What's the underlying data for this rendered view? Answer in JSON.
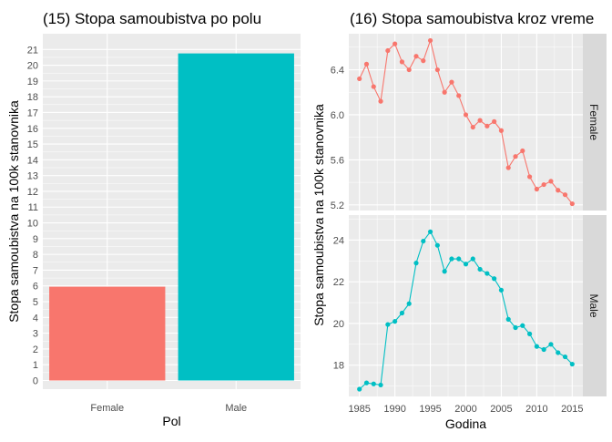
{
  "chart_data": [
    {
      "type": "bar",
      "title": "(15) Stopa samoubistva po polu",
      "xlabel": "Pol",
      "ylabel": "Stopa samoubistva na 100k stanovnika",
      "categories": [
        "Female",
        "Male"
      ],
      "values": [
        5.95,
        20.75
      ],
      "colors": [
        "#F8766D",
        "#00BFC4"
      ],
      "ylim": [
        -0.55,
        22.0
      ],
      "yticks": [
        0,
        1,
        2,
        3,
        4,
        5,
        6,
        7,
        8,
        9,
        10,
        11,
        12,
        13,
        14,
        15,
        16,
        17,
        18,
        19,
        20,
        21
      ],
      "grid": true,
      "legend": "none"
    },
    {
      "type": "line",
      "title": "(16) Stopa samoubistva kroz vreme",
      "xlabel": "Godina",
      "ylabel": "Stopa samoubistva na 100k stanovnika",
      "xlim": [
        1983.5,
        2016.5
      ],
      "xticks": [
        1985,
        1990,
        1995,
        2000,
        2005,
        2010,
        2015
      ],
      "grid": true,
      "legend": "none",
      "facets": "rows",
      "series": [
        {
          "name": "Female",
          "color": "#F8766D",
          "ylim": [
            5.15,
            6.72
          ],
          "yticks": [
            5.2,
            5.6,
            6.0,
            6.4
          ],
          "x": [
            1985,
            1986,
            1987,
            1988,
            1989,
            1990,
            1991,
            1992,
            1993,
            1994,
            1995,
            1996,
            1997,
            1998,
            1999,
            2000,
            2001,
            2002,
            2003,
            2004,
            2005,
            2006,
            2007,
            2008,
            2009,
            2010,
            2011,
            2012,
            2013,
            2014,
            2015
          ],
          "values": [
            6.32,
            6.45,
            6.25,
            6.12,
            6.57,
            6.63,
            6.47,
            6.4,
            6.52,
            6.48,
            6.66,
            6.4,
            6.2,
            6.29,
            6.17,
            6.0,
            5.89,
            5.95,
            5.9,
            5.94,
            5.86,
            5.53,
            5.63,
            5.68,
            5.45,
            5.34,
            5.38,
            5.41,
            5.33,
            5.29,
            5.21
          ]
        },
        {
          "name": "Male",
          "color": "#00BFC4",
          "ylim": [
            16.5,
            25.2
          ],
          "yticks": [
            18,
            20,
            22,
            24
          ],
          "x": [
            1985,
            1986,
            1987,
            1988,
            1989,
            1990,
            1991,
            1992,
            1993,
            1994,
            1995,
            1996,
            1997,
            1998,
            1999,
            2000,
            2001,
            2002,
            2003,
            2004,
            2005,
            2006,
            2007,
            2008,
            2009,
            2010,
            2011,
            2012,
            2013,
            2014,
            2015
          ],
          "values": [
            16.85,
            17.15,
            17.1,
            17.05,
            19.95,
            20.1,
            20.5,
            20.95,
            22.9,
            23.95,
            24.4,
            23.75,
            22.5,
            23.1,
            23.1,
            22.85,
            23.1,
            22.6,
            22.4,
            22.15,
            21.6,
            20.2,
            19.8,
            19.9,
            19.5,
            18.9,
            18.75,
            19.0,
            18.6,
            18.4,
            18.05
          ]
        }
      ]
    }
  ]
}
